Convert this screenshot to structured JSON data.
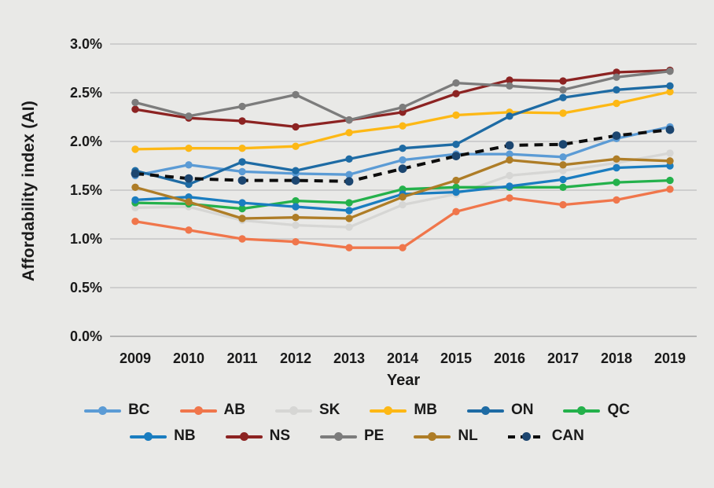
{
  "figure": {
    "background_color": "#E9E9E7",
    "gridline_color": "#BFBFBF",
    "axis_line_color": "#A3A3A3",
    "text_color": "#1A1A1A"
  },
  "chart_data": {
    "type": "line",
    "title": "",
    "xlabel": "Year",
    "ylabel": "Affordability index (AI)",
    "x": [
      2009,
      2010,
      2011,
      2012,
      2013,
      2014,
      2015,
      2016,
      2017,
      2018,
      2019
    ],
    "y_ticks": [
      "3.0%",
      "2.5%",
      "2.0%",
      "1.5%",
      "1.0%",
      "0.5%",
      "0.0%"
    ],
    "ylim": [
      0.0,
      3.0
    ],
    "grid": "horizontal",
    "legend_position": "bottom",
    "legend_rows": [
      [
        "BC",
        "AB",
        "SK",
        "MB",
        "ON",
        "QC"
      ],
      [
        "NB",
        "NS",
        "PE",
        "NL",
        "CAN"
      ]
    ],
    "series": [
      {
        "name": "BC",
        "color": "#5B9BD5",
        "style": "solid",
        "values": [
          1.65,
          1.76,
          1.69,
          1.67,
          1.66,
          1.81,
          1.87,
          1.87,
          1.84,
          2.03,
          2.15
        ]
      },
      {
        "name": "AB",
        "color": "#F0764B",
        "style": "solid",
        "values": [
          1.18,
          1.09,
          1.0,
          0.97,
          0.91,
          0.91,
          1.28,
          1.42,
          1.35,
          1.4,
          1.51
        ]
      },
      {
        "name": "SK",
        "color": "#D6D6D4",
        "style": "solid",
        "values": [
          1.32,
          1.33,
          1.19,
          1.14,
          1.12,
          1.35,
          1.46,
          1.65,
          1.7,
          1.78,
          1.88
        ]
      },
      {
        "name": "MB",
        "color": "#FDB815",
        "style": "solid",
        "values": [
          1.92,
          1.93,
          1.93,
          1.95,
          2.09,
          2.16,
          2.27,
          2.3,
          2.29,
          2.39,
          2.51
        ]
      },
      {
        "name": "ON",
        "color": "#1E6BA4",
        "style": "solid",
        "values": [
          1.7,
          1.56,
          1.79,
          1.7,
          1.82,
          1.93,
          1.97,
          2.26,
          2.45,
          2.53,
          2.57
        ]
      },
      {
        "name": "QC",
        "color": "#24B14B",
        "style": "solid",
        "values": [
          1.37,
          1.36,
          1.31,
          1.39,
          1.37,
          1.51,
          1.53,
          1.53,
          1.53,
          1.58,
          1.6
        ]
      },
      {
        "name": "NB",
        "color": "#1A7DC0",
        "style": "solid",
        "values": [
          1.4,
          1.43,
          1.37,
          1.33,
          1.29,
          1.46,
          1.48,
          1.54,
          1.61,
          1.73,
          1.75
        ]
      },
      {
        "name": "NS",
        "color": "#8C2322",
        "style": "solid",
        "values": [
          2.33,
          2.24,
          2.21,
          2.15,
          2.22,
          2.3,
          2.49,
          2.63,
          2.62,
          2.71,
          2.73
        ]
      },
      {
        "name": "PE",
        "color": "#7C7C7C",
        "style": "solid",
        "values": [
          2.4,
          2.26,
          2.36,
          2.48,
          2.22,
          2.35,
          2.6,
          2.57,
          2.53,
          2.66,
          2.72
        ]
      },
      {
        "name": "NL",
        "color": "#AE7D27",
        "style": "solid",
        "values": [
          1.53,
          1.38,
          1.21,
          1.22,
          1.21,
          1.43,
          1.6,
          1.81,
          1.76,
          1.82,
          1.8
        ]
      },
      {
        "name": "CAN",
        "color": "#0D0D0D",
        "marker_color": "#1C4670",
        "style": "dashed",
        "values": [
          1.67,
          1.62,
          1.6,
          1.6,
          1.59,
          1.72,
          1.85,
          1.96,
          1.97,
          2.06,
          2.12
        ]
      }
    ]
  }
}
